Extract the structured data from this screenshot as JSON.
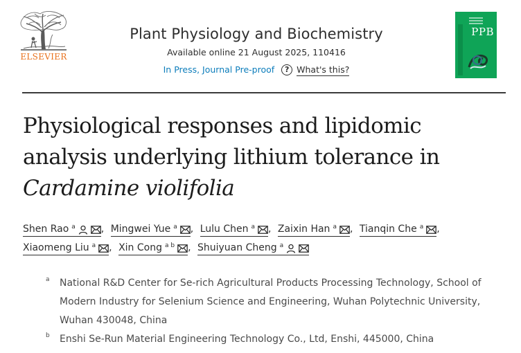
{
  "publisher": {
    "name": "ELSEVIER",
    "logo_icon": "elsevier-tree-icon",
    "brand_color": "#e9711c"
  },
  "journal": {
    "title": "Plant Physiology and Biochemistry",
    "availability": "Available online 21 August 2025, 110416",
    "status": "In Press, Journal Pre-proof",
    "help_icon": "question-circle-icon",
    "help_label": "What's this?",
    "link_color": "#0c7dbb",
    "cover_title": "PPB",
    "cover_color": "#0fa457"
  },
  "article": {
    "title_main": "Physiological responses and lipidomic analysis underlying lithium tolerance in",
    "title_species": "Cardamine violifolia"
  },
  "authors": [
    {
      "name": "Shen Rao",
      "sup": "a",
      "icons": [
        "person-icon",
        "envelope-icon"
      ],
      "sep": ","
    },
    {
      "name": "Mingwei Yue",
      "sup": "a",
      "icons": [
        "envelope-icon"
      ],
      "sep": ","
    },
    {
      "name": "Lulu Chen",
      "sup": "a",
      "icons": [
        "envelope-icon"
      ],
      "sep": ","
    },
    {
      "name": "Zaixin Han",
      "sup": "a",
      "icons": [
        "envelope-icon"
      ],
      "sep": ","
    },
    {
      "name": "Tianqin Che",
      "sup": "a",
      "icons": [
        "envelope-icon"
      ],
      "sep": ","
    },
    {
      "name": "Xiaomeng Liu",
      "sup": "a",
      "icons": [
        "envelope-icon"
      ],
      "sep": ","
    },
    {
      "name": "Xin Cong",
      "sup": "a b",
      "icons": [
        "envelope-icon"
      ],
      "sep": ","
    },
    {
      "name": "Shuiyuan Cheng",
      "sup": "a",
      "icons": [
        "person-icon",
        "envelope-icon"
      ],
      "sep": ""
    }
  ],
  "affiliations": [
    {
      "label": "a",
      "text": "National R&D Center for Se-rich Agricultural Products Processing Technology, School of Modern Industry for Selenium Science and Engineering, Wuhan Polytechnic University, Wuhan 430048, China"
    },
    {
      "label": "b",
      "text": "Enshi Se-Run Material Engineering Technology Co., Ltd, Enshi, 445000, China"
    }
  ]
}
